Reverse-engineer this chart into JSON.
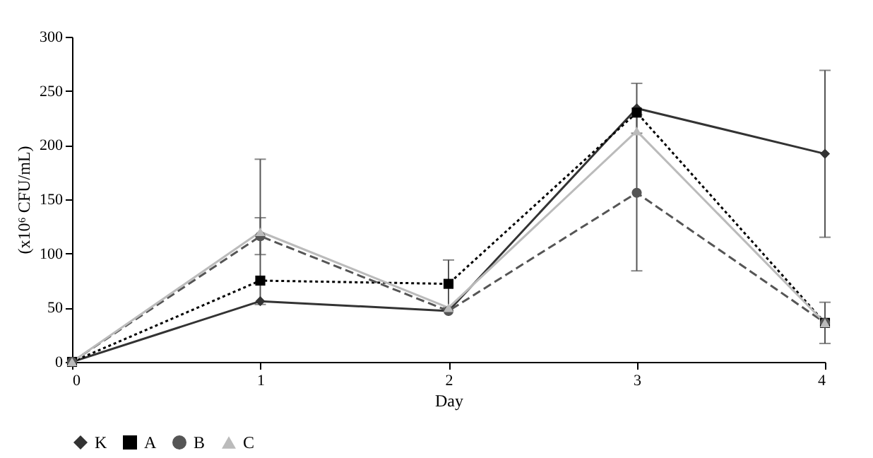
{
  "chart_data": {
    "type": "line",
    "xlabel": "Day",
    "ylabel": "(x10⁶ CFU/mL)",
    "x": [
      0,
      1,
      2,
      3,
      4
    ],
    "xlim": [
      0,
      4
    ],
    "xticks": [
      0,
      1,
      2,
      3,
      4
    ],
    "ylim": [
      0,
      300
    ],
    "yticks": [
      0,
      50,
      100,
      150,
      200,
      250,
      300
    ],
    "grid": false,
    "legend": "bottom",
    "series": [
      {
        "name": "K",
        "color": "#333333",
        "marker": "diamond",
        "line_style": "solid",
        "values": [
          0,
          56,
          47,
          234,
          192
        ],
        "errors": [
          null,
          null,
          null,
          23,
          77
        ]
      },
      {
        "name": "A",
        "color": "#000000",
        "marker": "square",
        "line_style": "dotted",
        "values": [
          0,
          75,
          72,
          230,
          36
        ],
        "errors": [
          null,
          null,
          22,
          null,
          19
        ]
      },
      {
        "name": "B",
        "color": "#555555",
        "marker": "circle",
        "line_style": "dashed",
        "values": [
          0,
          116,
          47,
          156,
          36
        ],
        "errors": [
          null,
          17,
          null,
          72,
          null
        ]
      },
      {
        "name": "C",
        "color": "#bbbbbb",
        "marker": "triangle",
        "line_style": "solid",
        "values": [
          0,
          120,
          50,
          213,
          36
        ],
        "errors": [
          null,
          67,
          null,
          null,
          null
        ]
      }
    ]
  }
}
